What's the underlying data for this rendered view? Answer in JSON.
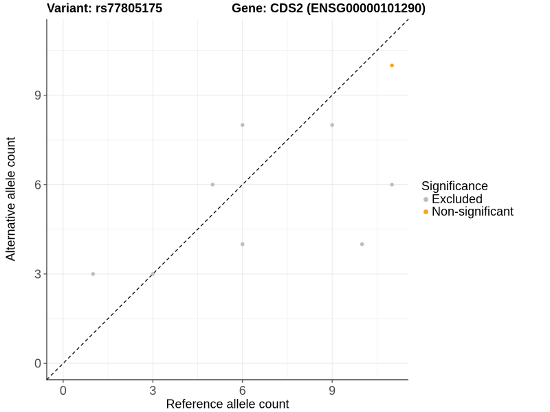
{
  "title": {
    "variant_label": "Variant: rs77805175",
    "gene_label": "Gene: CDS2 (ENSG00000101290)"
  },
  "axes": {
    "x_label": "Reference allele count",
    "y_label": "Alternative allele count",
    "x_ticks": [
      0,
      3,
      6,
      9
    ],
    "y_ticks": [
      0,
      3,
      6,
      9
    ],
    "minor_ticks": [
      1.5,
      4.5,
      7.5,
      10.5
    ]
  },
  "legend": {
    "title": "Significance",
    "items": [
      {
        "label": "Excluded",
        "color": "#BDBDBD"
      },
      {
        "label": "Non-significant",
        "color": "#F6A623"
      }
    ]
  },
  "colors": {
    "grid_major": "#E8E8E8",
    "grid_minor": "#F3F3F3",
    "axis_line": "#464646",
    "tick_label": "#4D4D4D",
    "identity_line": "#111111"
  },
  "chart_data": {
    "type": "scatter",
    "title": "Variant: rs77805175    Gene: CDS2 (ENSG00000101290)",
    "xlabel": "Reference allele count",
    "ylabel": "Alternative allele count",
    "xlim": [
      -0.55,
      11.55
    ],
    "ylim": [
      -0.55,
      11.55
    ],
    "x_ticks": [
      0,
      3,
      6,
      9
    ],
    "y_ticks": [
      0,
      3,
      6,
      9
    ],
    "grid": true,
    "legend_title": "Significance",
    "legend_position": "right",
    "reference_line": {
      "type": "identity",
      "style": "dashed",
      "color": "#111111"
    },
    "series": [
      {
        "name": "Excluded",
        "color": "#BDBDBD",
        "points": [
          [
            1,
            3
          ],
          [
            3,
            3
          ],
          [
            5,
            6
          ],
          [
            6,
            4
          ],
          [
            6,
            8
          ],
          [
            9,
            8
          ],
          [
            10,
            4
          ],
          [
            11,
            6
          ]
        ]
      },
      {
        "name": "Non-significant",
        "color": "#F6A623",
        "points": [
          [
            11,
            10
          ]
        ]
      }
    ]
  }
}
